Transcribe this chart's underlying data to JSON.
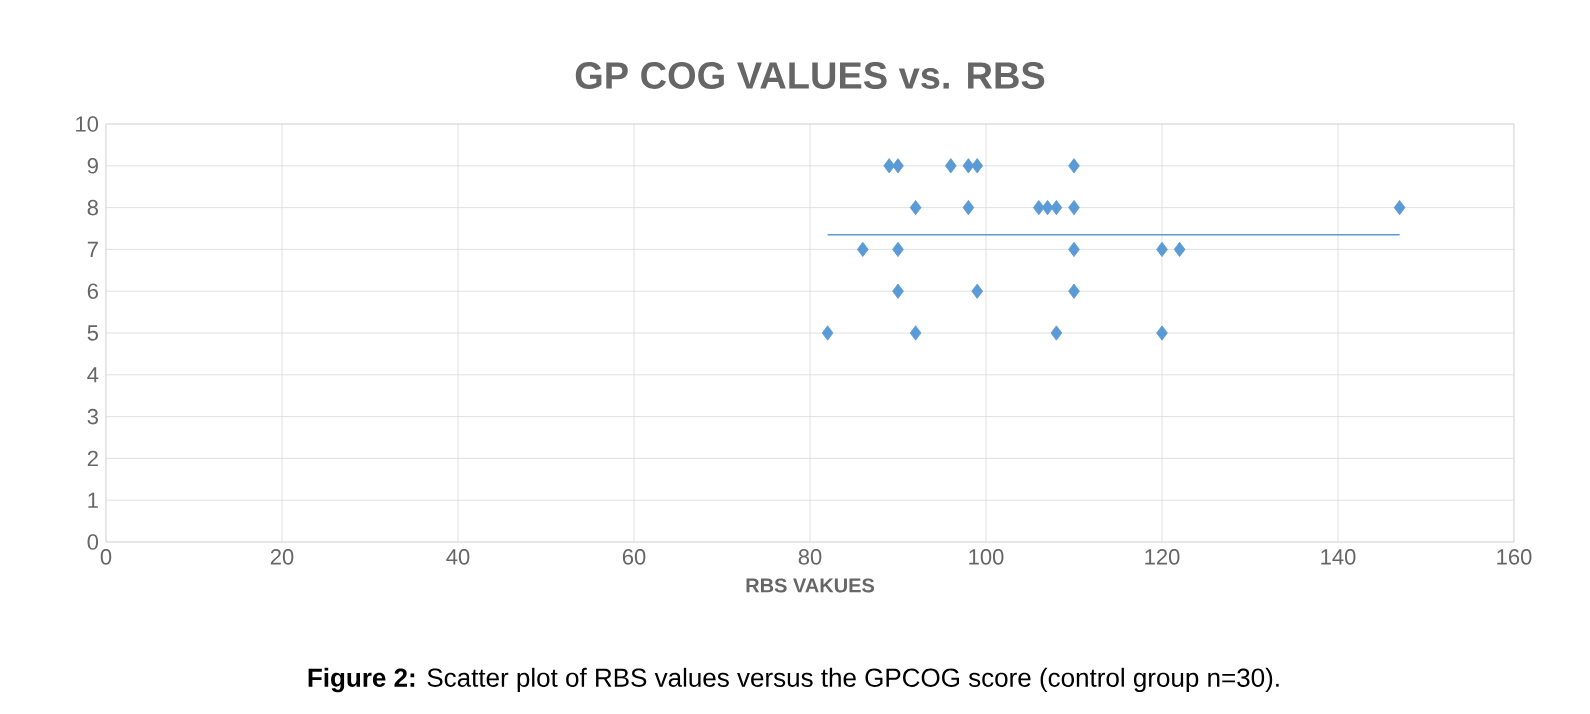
{
  "chart_data": {
    "type": "scatter",
    "title": "GP COG VALUES vs. RBS",
    "xlabel": "RBS VAKUES",
    "annotations": [
      "**Figure 2:** Scatter plot of RBS values versus the GPCOG score (control group n=30)."
    ],
    "xlim": [
      0,
      160
    ],
    "xticks": [
      0,
      20,
      40,
      60,
      80,
      100,
      120,
      140,
      160
    ],
    "ylim": [
      0,
      10
    ],
    "yticks": [
      0,
      1,
      2,
      3,
      4,
      5,
      6,
      7,
      8,
      9,
      10
    ],
    "grid": true,
    "marker": "diamond",
    "series": [
      {
        "color": "#5b9bd5",
        "x": [
          89,
          90,
          96,
          98,
          99,
          110,
          92,
          98,
          106,
          107,
          108,
          110,
          147,
          86,
          90,
          110,
          120,
          122,
          90,
          99,
          110,
          82,
          92,
          108,
          120
        ],
        "values": [
          9,
          9,
          9,
          9,
          9,
          9,
          8,
          8,
          8,
          8,
          8,
          8,
          8,
          7,
          7,
          7,
          7,
          7,
          6,
          6,
          6,
          5,
          5,
          5,
          5
        ]
      },
      {
        "type": "line",
        "color": "#5b9bd5",
        "marker": "none",
        "x": [
          82,
          147
        ],
        "values": [
          7.35,
          7.35
        ]
      }
    ]
  }
}
